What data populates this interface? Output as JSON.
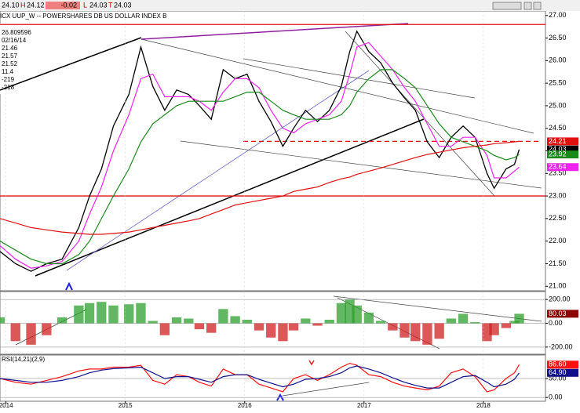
{
  "header": {
    "title": "ICX UUP_W -- POWERSHARES DB US DOLLAR INDEX B",
    "open": "24.10",
    "open_tag": "H",
    "high": "24.12",
    "change": "-0.02",
    "low_tag": "L",
    "low": "24.03",
    "last_tag": "T",
    "last": "24.03"
  },
  "info_box": [
    "26.809596",
    "02/16/14",
    "21.46",
    "21.57",
    "21.52",
    "11.4",
    "-219",
    "-218"
  ],
  "chart_data": [
    {
      "type": "line",
      "x": [
        2013.95,
        2014.08,
        2014.21,
        2014.34,
        2014.47,
        2014.61,
        2014.7,
        2014.8,
        2014.9,
        2015.03,
        2015.13,
        2015.23,
        2015.33,
        2015.43,
        2015.53,
        2015.62,
        2015.72,
        2015.82,
        2015.92,
        2016.02,
        2016.12,
        2016.22,
        2016.32,
        2016.41,
        2016.51,
        2016.61,
        2016.71,
        2016.81,
        2016.88,
        2016.94,
        2017.04,
        2017.14,
        2017.24,
        2017.34,
        2017.43,
        2017.53,
        2017.63,
        2017.73,
        2017.83,
        2017.93,
        2018.03,
        2018.09,
        2018.19,
        2018.26,
        2018.3
      ],
      "series": [
        {
          "color": "#000000",
          "values": [
            21.77,
            21.5,
            21.33,
            21.5,
            21.6,
            22.3,
            23.0,
            23.6,
            24.55,
            25.25,
            26.3,
            25.43,
            24.9,
            25.35,
            25.25,
            25.0,
            24.7,
            25.8,
            25.6,
            25.7,
            25.1,
            24.65,
            24.1,
            24.5,
            24.9,
            24.65,
            24.9,
            25.43,
            26.2,
            26.65,
            26.2,
            25.95,
            25.5,
            25.17,
            24.9,
            24.2,
            23.85,
            24.3,
            24.55,
            24.3,
            23.5,
            23.17,
            23.6,
            23.7,
            24.03
          ]
        },
        {
          "color": "#ee22ee",
          "values": [
            21.9,
            21.6,
            21.4,
            21.45,
            21.55,
            22.0,
            22.6,
            23.2,
            24.0,
            24.8,
            25.6,
            25.7,
            25.2,
            25.2,
            25.2,
            25.1,
            24.9,
            25.3,
            25.6,
            25.6,
            25.4,
            24.9,
            24.5,
            24.4,
            24.6,
            24.7,
            24.8,
            25.1,
            25.7,
            26.3,
            26.4,
            26.1,
            25.8,
            25.4,
            25.1,
            24.6,
            24.1,
            24.1,
            24.3,
            24.3,
            23.9,
            23.4,
            23.4,
            23.55,
            23.64
          ]
        },
        {
          "color": "#1a8a1a",
          "values": [
            22.0,
            21.8,
            21.6,
            21.5,
            21.5,
            21.7,
            22.0,
            22.5,
            23.0,
            23.6,
            24.2,
            24.6,
            24.8,
            25.0,
            25.1,
            25.1,
            25.1,
            25.1,
            25.2,
            25.3,
            25.3,
            25.1,
            24.9,
            24.8,
            24.7,
            24.7,
            24.7,
            24.8,
            25.0,
            25.3,
            25.6,
            25.8,
            25.8,
            25.6,
            25.4,
            25.0,
            24.6,
            24.3,
            24.2,
            24.1,
            24.0,
            23.9,
            23.8,
            23.85,
            23.92
          ]
        },
        {
          "color": "#e01010",
          "values": [
            22.5,
            22.4,
            22.3,
            22.25,
            22.2,
            22.17,
            22.15,
            22.15,
            22.17,
            22.2,
            22.25,
            22.3,
            22.35,
            22.4,
            22.45,
            22.5,
            22.6,
            22.7,
            22.8,
            22.85,
            22.9,
            22.95,
            23.0,
            23.1,
            23.15,
            23.2,
            23.3,
            23.38,
            23.42,
            23.48,
            23.55,
            23.62,
            23.7,
            23.78,
            23.85,
            23.92,
            23.97,
            24.02,
            24.07,
            24.1,
            24.13,
            24.16,
            24.18,
            24.2,
            24.21
          ]
        }
      ],
      "hlines": [
        {
          "value": 26.8,
          "color": "#e01010",
          "dashed": false
        },
        {
          "value": 23.0,
          "color": "#e01010",
          "dashed": false
        },
        {
          "value": 24.21,
          "color": "#e01010",
          "dashed": true
        }
      ],
      "xlim": [
        2013.95,
        2018.52
      ],
      "ylim": [
        20.9,
        27.1
      ],
      "yticks": [
        {
          "value": 21,
          "label": "21.00"
        },
        {
          "value": 21.5,
          "label": "21.50"
        },
        {
          "value": 22,
          "label": "22.00"
        },
        {
          "value": 22.5,
          "label": "22.50"
        },
        {
          "value": 23,
          "label": "23.00"
        },
        {
          "value": 23.5,
          "label": "23.50"
        },
        {
          "value": 24,
          "label": "24.00"
        },
        {
          "value": 24.5,
          "label": "24.50"
        },
        {
          "value": 25,
          "label": "25.00"
        },
        {
          "value": 25.5,
          "label": "25.50"
        },
        {
          "value": 26,
          "label": "26.00"
        },
        {
          "value": 26.5,
          "label": "26.50"
        },
        {
          "value": 27,
          "label": "27.00"
        }
      ]
    },
    {
      "type": "bar",
      "x": [
        2013.95,
        2014.08,
        2014.21,
        2014.34,
        2014.47,
        2014.61,
        2014.7,
        2014.8,
        2014.9,
        2015.03,
        2015.13,
        2015.23,
        2015.33,
        2015.43,
        2015.53,
        2015.62,
        2015.72,
        2015.82,
        2015.92,
        2016.02,
        2016.12,
        2016.22,
        2016.32,
        2016.41,
        2016.51,
        2016.61,
        2016.71,
        2016.81,
        2016.88,
        2016.94,
        2017.04,
        2017.14,
        2017.24,
        2017.34,
        2017.43,
        2017.53,
        2017.63,
        2017.73,
        2017.83,
        2017.93,
        2018.03,
        2018.09,
        2018.19,
        2018.26,
        2018.3
      ],
      "values": [
        50,
        -150,
        -180,
        -100,
        50,
        150,
        170,
        180,
        150,
        160,
        170,
        20,
        -100,
        50,
        40,
        -50,
        -80,
        120,
        60,
        30,
        -60,
        -120,
        -150,
        -60,
        40,
        -20,
        30,
        170,
        200,
        150,
        90,
        20,
        -60,
        -120,
        -150,
        -180,
        -130,
        40,
        80,
        10,
        -150,
        -100,
        -40,
        20,
        80.03
      ],
      "colors": {
        "positive": "#2ea02e",
        "negative": "#d02020"
      },
      "xlim": [
        2013.95,
        2018.52
      ],
      "ylim": [
        -260,
        267
      ],
      "yticks": [
        {
          "value": 200,
          "label": "200.00"
        },
        {
          "value": 0,
          "label": "0.00"
        },
        {
          "value": -200,
          "label": "-200.00"
        }
      ],
      "last_label": {
        "value": 80.03,
        "label": "80.03",
        "color": "#8b0000"
      }
    },
    {
      "type": "line",
      "title": "RSI(14,21)(2,9)",
      "x": [
        2013.95,
        2014.08,
        2014.21,
        2014.34,
        2014.47,
        2014.61,
        2014.7,
        2014.8,
        2014.9,
        2015.03,
        2015.13,
        2015.23,
        2015.33,
        2015.43,
        2015.53,
        2015.62,
        2015.72,
        2015.82,
        2015.92,
        2016.02,
        2016.12,
        2016.22,
        2016.32,
        2016.41,
        2016.51,
        2016.61,
        2016.71,
        2016.81,
        2016.88,
        2016.94,
        2017.04,
        2017.14,
        2017.24,
        2017.34,
        2017.43,
        2017.53,
        2017.63,
        2017.73,
        2017.83,
        2017.93,
        2018.03,
        2018.09,
        2018.19,
        2018.26,
        2018.3
      ],
      "series": [
        {
          "color": "#ff1010",
          "values": [
            50,
            40,
            35,
            45,
            55,
            70,
            75,
            75,
            80,
            80,
            85,
            45,
            35,
            60,
            55,
            40,
            30,
            75,
            60,
            60,
            35,
            25,
            15,
            50,
            60,
            45,
            60,
            80,
            90,
            85,
            60,
            55,
            40,
            30,
            25,
            20,
            30,
            65,
            75,
            55,
            15,
            20,
            50,
            65,
            86.6
          ],
          "last_label": "86.60"
        },
        {
          "color": "#10108b",
          "values": [
            50,
            45,
            40,
            40,
            45,
            55,
            65,
            72,
            76,
            78,
            80,
            65,
            50,
            55,
            55,
            48,
            40,
            55,
            60,
            60,
            48,
            38,
            28,
            35,
            48,
            50,
            55,
            65,
            78,
            83,
            75,
            65,
            52,
            40,
            32,
            25,
            25,
            40,
            55,
            58,
            40,
            28,
            35,
            48,
            64.9
          ],
          "last_label": "64.90"
        }
      ],
      "xlim": [
        2013.95,
        2018.52
      ],
      "ylim": [
        -10,
        112
      ],
      "yticks": [
        {
          "value": 50,
          "label": "50.00"
        },
        {
          "value": 0,
          "label": "0.00"
        }
      ],
      "xticks": [
        2014,
        2015,
        2016,
        2017,
        2018
      ]
    }
  ]
}
